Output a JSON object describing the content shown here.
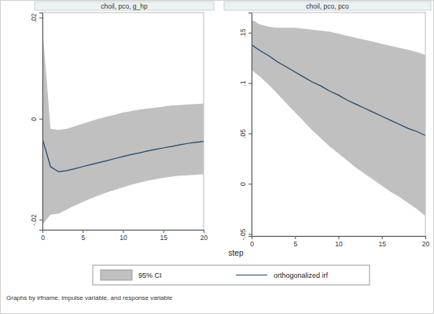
{
  "chart_data": {
    "type": "line",
    "x_label": "step",
    "note": "Graphs by irfname, impulse variable, and response variable",
    "legend": "bottom",
    "panels": [
      {
        "title": "choil, pco, g_hp",
        "x": [
          0,
          1,
          2,
          3,
          4,
          5,
          6,
          7,
          8,
          9,
          10,
          11,
          12,
          13,
          14,
          15,
          16,
          17,
          18,
          19,
          20
        ],
        "xlim": [
          0,
          20
        ],
        "xticks": [
          0,
          5,
          10,
          15,
          20
        ],
        "ylim": [
          -0.022,
          0.021
        ],
        "yticks": [
          {
            "value": -0.02,
            "label": "-.02"
          },
          0,
          {
            "value": 0.02,
            "label": ".02"
          }
        ],
        "series": [
          {
            "name": "95% CI",
            "type": "area",
            "color": "#c0c0c0",
            "lower": [
              -0.021,
              -0.019,
              -0.0188,
              -0.018,
              -0.0172,
              -0.0165,
              -0.0158,
              -0.0152,
              -0.0146,
              -0.0141,
              -0.0136,
              -0.0131,
              -0.0127,
              -0.0123,
              -0.012,
              -0.0117,
              -0.0115,
              -0.0113,
              -0.0112,
              -0.0111,
              -0.011
            ],
            "upper": [
              0.018,
              -0.002,
              -0.0022,
              -0.002,
              -0.0015,
              -0.001,
              -0.0005,
              0.0,
              0.0004,
              0.0008,
              0.0012,
              0.0015,
              0.0018,
              0.002,
              0.0022,
              0.0024,
              0.0026,
              0.0027,
              0.0028,
              0.0029,
              0.003
            ]
          },
          {
            "name": "orthogonalized irf",
            "type": "line",
            "color": "#1a476f",
            "values": [
              -0.004,
              -0.0095,
              -0.0105,
              -0.0103,
              -0.0099,
              -0.0095,
              -0.0091,
              -0.0087,
              -0.0083,
              -0.0079,
              -0.0075,
              -0.0071,
              -0.0068,
              -0.0064,
              -0.0061,
              -0.0058,
              -0.0055,
              -0.0052,
              -0.0049,
              -0.0047,
              -0.0045
            ]
          }
        ]
      },
      {
        "title": "choil, pco, pco",
        "x": [
          0,
          1,
          2,
          3,
          4,
          5,
          6,
          7,
          8,
          9,
          10,
          11,
          12,
          13,
          14,
          15,
          16,
          17,
          18,
          19,
          20
        ],
        "xlim": [
          0,
          20
        ],
        "xticks": [
          0,
          5,
          10,
          15,
          20
        ],
        "ylim": [
          -0.052,
          0.17
        ],
        "yticks": [
          {
            "value": -0.05,
            "label": "-.05"
          },
          0,
          {
            "value": 0.05,
            "label": ".05"
          },
          {
            "value": 0.1,
            "label": ".1"
          },
          {
            "value": 0.15,
            "label": ".15"
          }
        ],
        "series": [
          {
            "name": "95% CI",
            "type": "area",
            "color": "#c0c0c0",
            "lower": [
              0.113,
              0.106,
              0.098,
              0.089,
              0.08,
              0.071,
              0.062,
              0.053,
              0.045,
              0.037,
              0.03,
              0.023,
              0.016,
              0.01,
              0.004,
              -0.002,
              -0.008,
              -0.013,
              -0.019,
              -0.025,
              -0.032
            ],
            "upper": [
              0.163,
              0.158,
              0.156,
              0.155,
              0.155,
              0.155,
              0.154,
              0.153,
              0.152,
              0.151,
              0.149,
              0.147,
              0.145,
              0.143,
              0.141,
              0.139,
              0.137,
              0.135,
              0.133,
              0.131,
              0.128
            ]
          },
          {
            "name": "orthogonalized irf",
            "type": "line",
            "color": "#1a476f",
            "values": [
              0.138,
              0.132,
              0.127,
              0.121,
              0.116,
              0.111,
              0.106,
              0.101,
              0.097,
              0.092,
              0.088,
              0.083,
              0.079,
              0.075,
              0.071,
              0.067,
              0.063,
              0.059,
              0.055,
              0.052,
              0.048
            ]
          }
        ]
      }
    ]
  }
}
